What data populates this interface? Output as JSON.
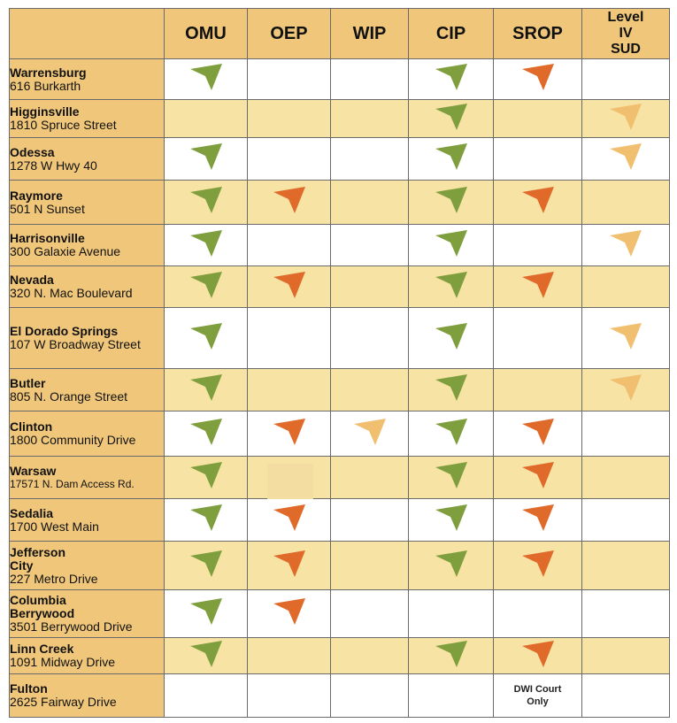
{
  "colors": {
    "header_bg": "#f0c77a",
    "row_alt_bg": "#f7e3a3",
    "green_check": "#7f9f3e",
    "orange_check": "#e06a2a",
    "light_check": "#f0c070"
  },
  "columns": [
    "OMU",
    "OEP",
    "WIP",
    "CIP",
    "SROP",
    "Level\nIV\nSUD"
  ],
  "rows": [
    {
      "name": "Warrensburg",
      "address": "616 Burkarth",
      "marks": [
        "green",
        "",
        "",
        "green",
        "orange",
        ""
      ]
    },
    {
      "name": "Higginsville",
      "address": "1810 Spruce Street",
      "marks": [
        "",
        "",
        "",
        "green",
        "",
        "light"
      ]
    },
    {
      "name": "Odessa",
      "address": "1278 W Hwy 40",
      "marks": [
        "green",
        "",
        "",
        "green",
        "",
        "light"
      ]
    },
    {
      "name": "Raymore",
      "address": "501 N Sunset",
      "marks": [
        "green",
        "orange",
        "",
        "green",
        "orange",
        ""
      ]
    },
    {
      "name": "Harrisonville",
      "address": "300 Galaxie Avenue",
      "marks": [
        "green",
        "",
        "",
        "green",
        "",
        "light"
      ]
    },
    {
      "name": "Nevada",
      "address": "320 N. Mac Boulevard",
      "marks": [
        "green",
        "orange",
        "",
        "green",
        "orange",
        ""
      ]
    },
    {
      "name": "El Dorado Springs",
      "address": "107 W Broadway Street",
      "marks": [
        "green",
        "",
        "",
        "green",
        "",
        "light"
      ]
    },
    {
      "name": "Butler",
      "address": "805 N. Orange Street",
      "marks": [
        "green",
        "",
        "",
        "green",
        "",
        "light"
      ]
    },
    {
      "name": "Clinton",
      "address": "1800 Community Drive",
      "marks": [
        "green",
        "orange",
        "light",
        "green",
        "orange",
        ""
      ]
    },
    {
      "name": "Warsaw",
      "address": "17571 N. Dam Access Rd.",
      "marks": [
        "green",
        "",
        "",
        "green",
        "orange",
        ""
      ]
    },
    {
      "name": "Sedalia",
      "address": "1700 West Main",
      "marks": [
        "green",
        "orange",
        "",
        "green",
        "orange",
        ""
      ]
    },
    {
      "name": "Jefferson\nCity",
      "address": "227 Metro Drive",
      "marks": [
        "green",
        "orange",
        "",
        "green",
        "orange",
        ""
      ]
    },
    {
      "name": "Columbia\nBerrywood",
      "address": "3501 Berrywood Drive",
      "marks": [
        "green",
        "orange",
        "",
        "",
        "",
        ""
      ]
    },
    {
      "name": "Linn Creek",
      "address": "1091 Midway Drive",
      "marks": [
        "green",
        "",
        "",
        "green",
        "orange",
        ""
      ]
    },
    {
      "name": "Fulton",
      "address": "2625 Fairway Drive",
      "marks": [
        "",
        "",
        "",
        "",
        "DWI Court\nOnly",
        ""
      ]
    }
  ],
  "icons": {
    "mark": "arrow-check-icon"
  }
}
